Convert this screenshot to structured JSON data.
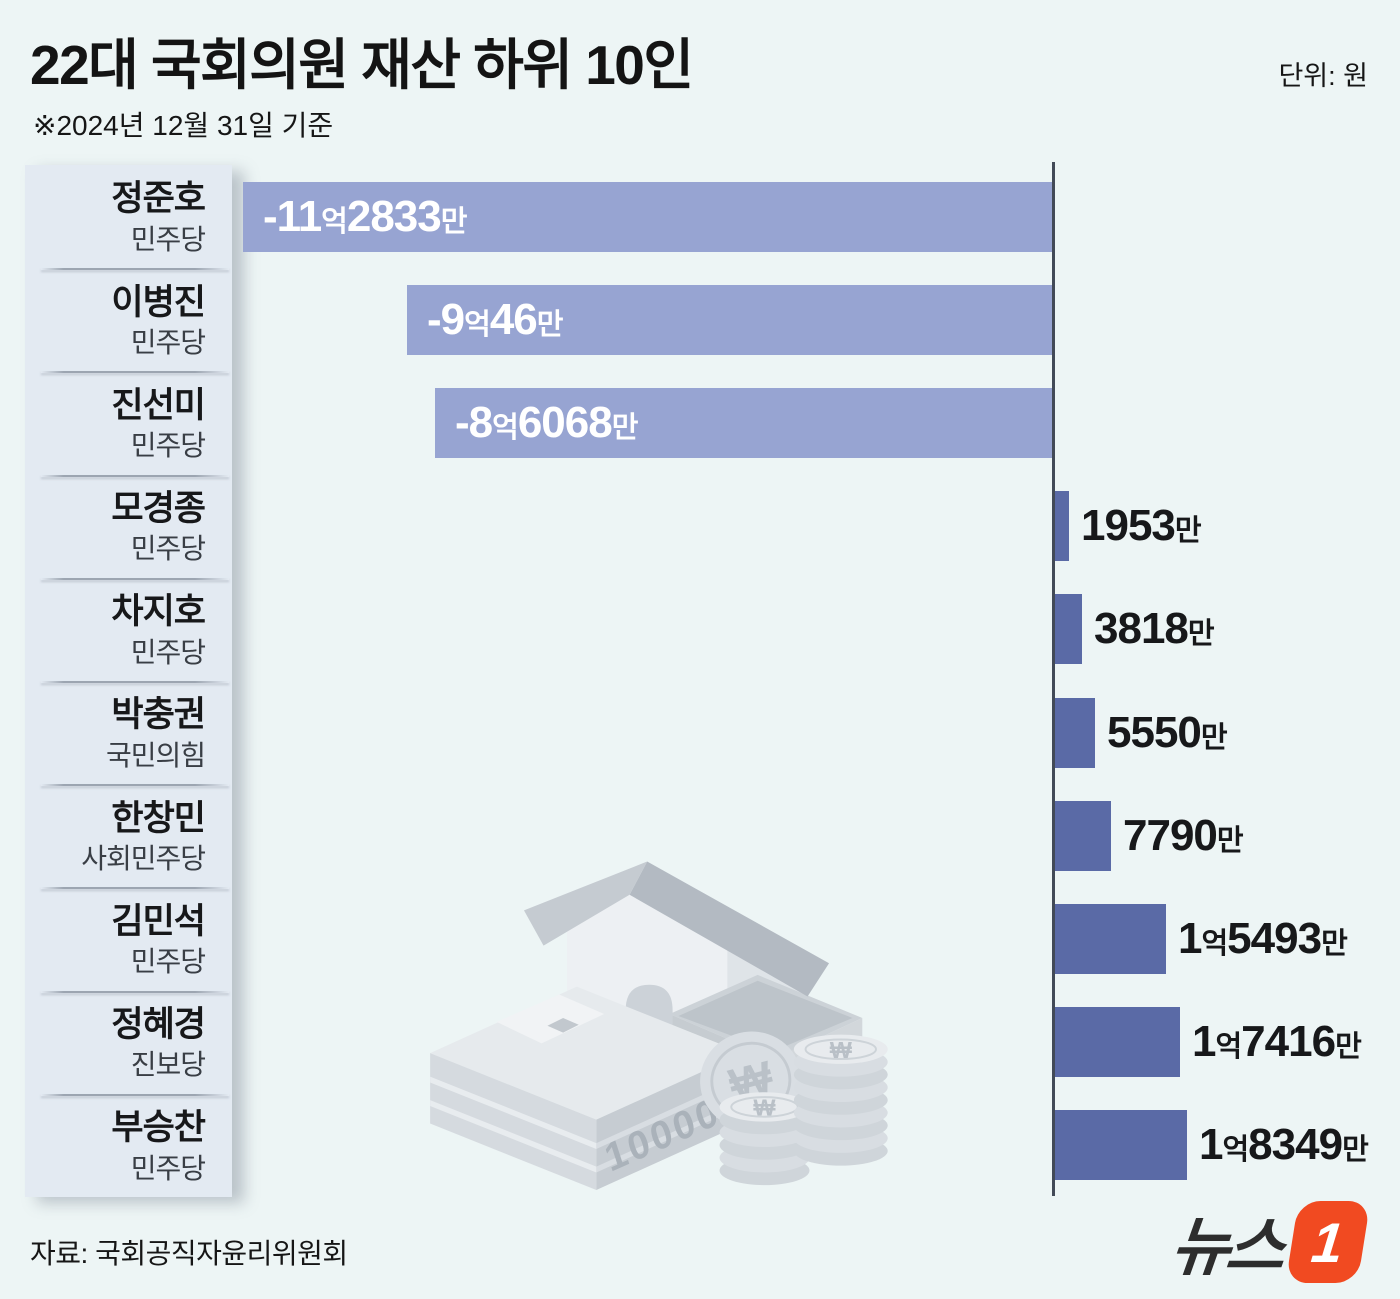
{
  "header": {
    "title": "22대 국회의원 재산 하위 10인",
    "subtitle": "※2024년 12월 31일 기준",
    "unit_label": "단위: 원"
  },
  "footer": {
    "source": "자료: 국회공직자윤리위원회",
    "logo_text": "뉴스",
    "logo_badge": "1"
  },
  "colors": {
    "background": "#edf5f5",
    "panel": "#e3eaf2",
    "negative_bar": "#97a4d2",
    "positive_bar": "#5a6aa6",
    "axis": "#424a57",
    "logo_accent": "#f14a21"
  },
  "illustration": {
    "description": "gray house sitting on stacks of 10000-won banknotes with coin stacks",
    "bill_text": "10000",
    "coin_symbol": "₩"
  },
  "chart_data": {
    "type": "bar",
    "orientation": "horizontal",
    "unit": "만원",
    "axis": {
      "baseline_value": 0,
      "note": "bars left of the vertical axis are negative assets"
    },
    "rows": [
      {
        "name": "정준호",
        "party": "민주당",
        "value_man": -112833,
        "label": "-11억2833만"
      },
      {
        "name": "이병진",
        "party": "민주당",
        "value_man": -90046,
        "label": "-9억46만"
      },
      {
        "name": "진선미",
        "party": "민주당",
        "value_man": -86068,
        "label": "-8억6068만"
      },
      {
        "name": "모경종",
        "party": "민주당",
        "value_man": 1953,
        "label": "1953만"
      },
      {
        "name": "차지호",
        "party": "민주당",
        "value_man": 3818,
        "label": "3818만"
      },
      {
        "name": "박충권",
        "party": "국민의힘",
        "value_man": 5550,
        "label": "5550만"
      },
      {
        "name": "한창민",
        "party": "사회민주당",
        "value_man": 7790,
        "label": "7790만"
      },
      {
        "name": "김민석",
        "party": "민주당",
        "value_man": 15493,
        "label": "1억5493만"
      },
      {
        "name": "정혜경",
        "party": "진보당",
        "value_man": 17416,
        "label": "1억7416만"
      },
      {
        "name": "부승찬",
        "party": "민주당",
        "value_man": 18349,
        "label": "1억8349만"
      }
    ]
  }
}
